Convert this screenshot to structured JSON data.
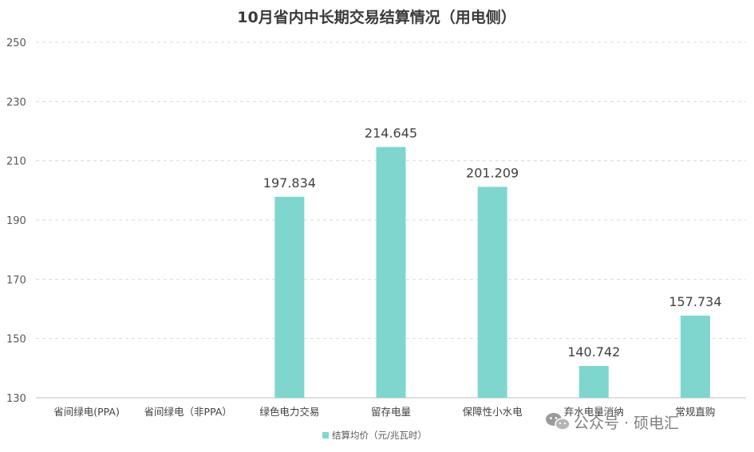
{
  "chart_data": {
    "type": "bar",
    "title": "10月省内中长期交易结算情况（用电侧）",
    "categories": [
      "省间绿电(PPA)",
      "省间绿电（非PPA）",
      "绿色电力交易",
      "留存电量",
      "保障性小水电",
      "弃水电量消纳",
      "常规直购"
    ],
    "series": [
      {
        "name": "结算均价（元/兆瓦时）",
        "values": [
          null,
          null,
          197.834,
          214.645,
          201.209,
          140.742,
          157.734
        ],
        "labels": [
          "",
          "",
          "197.834",
          "214.645",
          "201.209",
          "140.742",
          "157.734"
        ],
        "color": "#7fd6cf"
      }
    ],
    "ylim": [
      130,
      250
    ],
    "yticks": [
      130,
      150,
      170,
      190,
      210,
      230,
      250
    ],
    "ytick_labels": [
      "130",
      "150",
      "170",
      "190",
      "210",
      "230",
      "250"
    ],
    "grid": true,
    "legend_position": "bottom"
  },
  "watermark": {
    "text": "公众号 · 硕电汇",
    "icon": "wechat-icon"
  }
}
